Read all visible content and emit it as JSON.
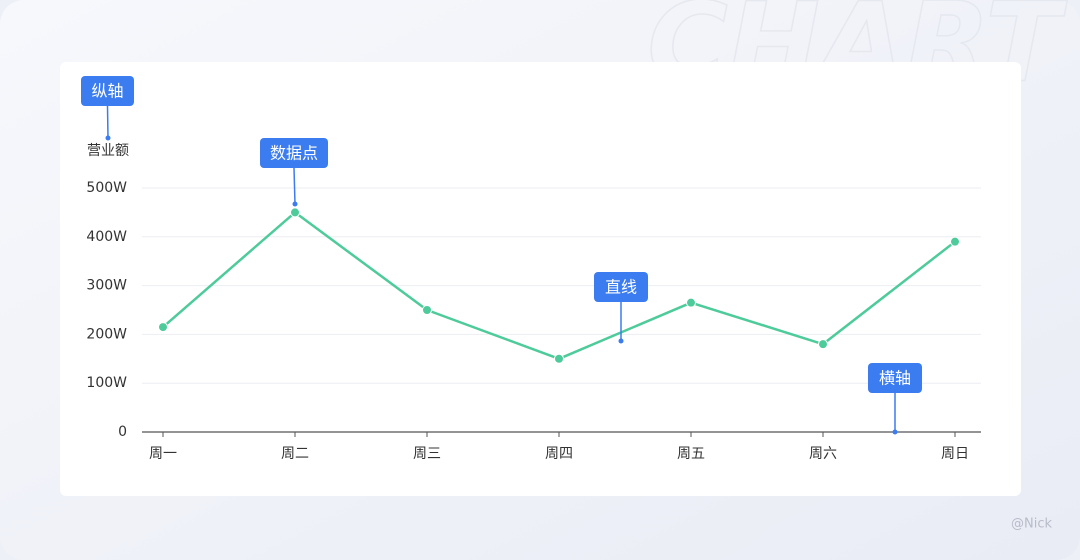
{
  "watermark": "CHART",
  "footer": "@Nick",
  "callouts": {
    "y_axis": "纵轴",
    "data_point": "数据点",
    "line": "直线",
    "x_axis": "横轴"
  },
  "chart_data": {
    "type": "line",
    "ylabel": "营业额",
    "categories": [
      "周一",
      "周二",
      "周三",
      "周四",
      "周五",
      "周六",
      "周日"
    ],
    "values": [
      215,
      450,
      250,
      150,
      265,
      180,
      390
    ],
    "color": "#4ecb9a",
    "ylim": [
      0,
      500
    ],
    "yticks": [
      0,
      {
        "value": 100,
        "label": "100W"
      },
      {
        "value": 200,
        "label": "200W"
      },
      {
        "value": 300,
        "label": "300W"
      },
      {
        "value": 400,
        "label": "400W"
      },
      {
        "value": 500,
        "label": "500W"
      }
    ],
    "grid": true
  }
}
